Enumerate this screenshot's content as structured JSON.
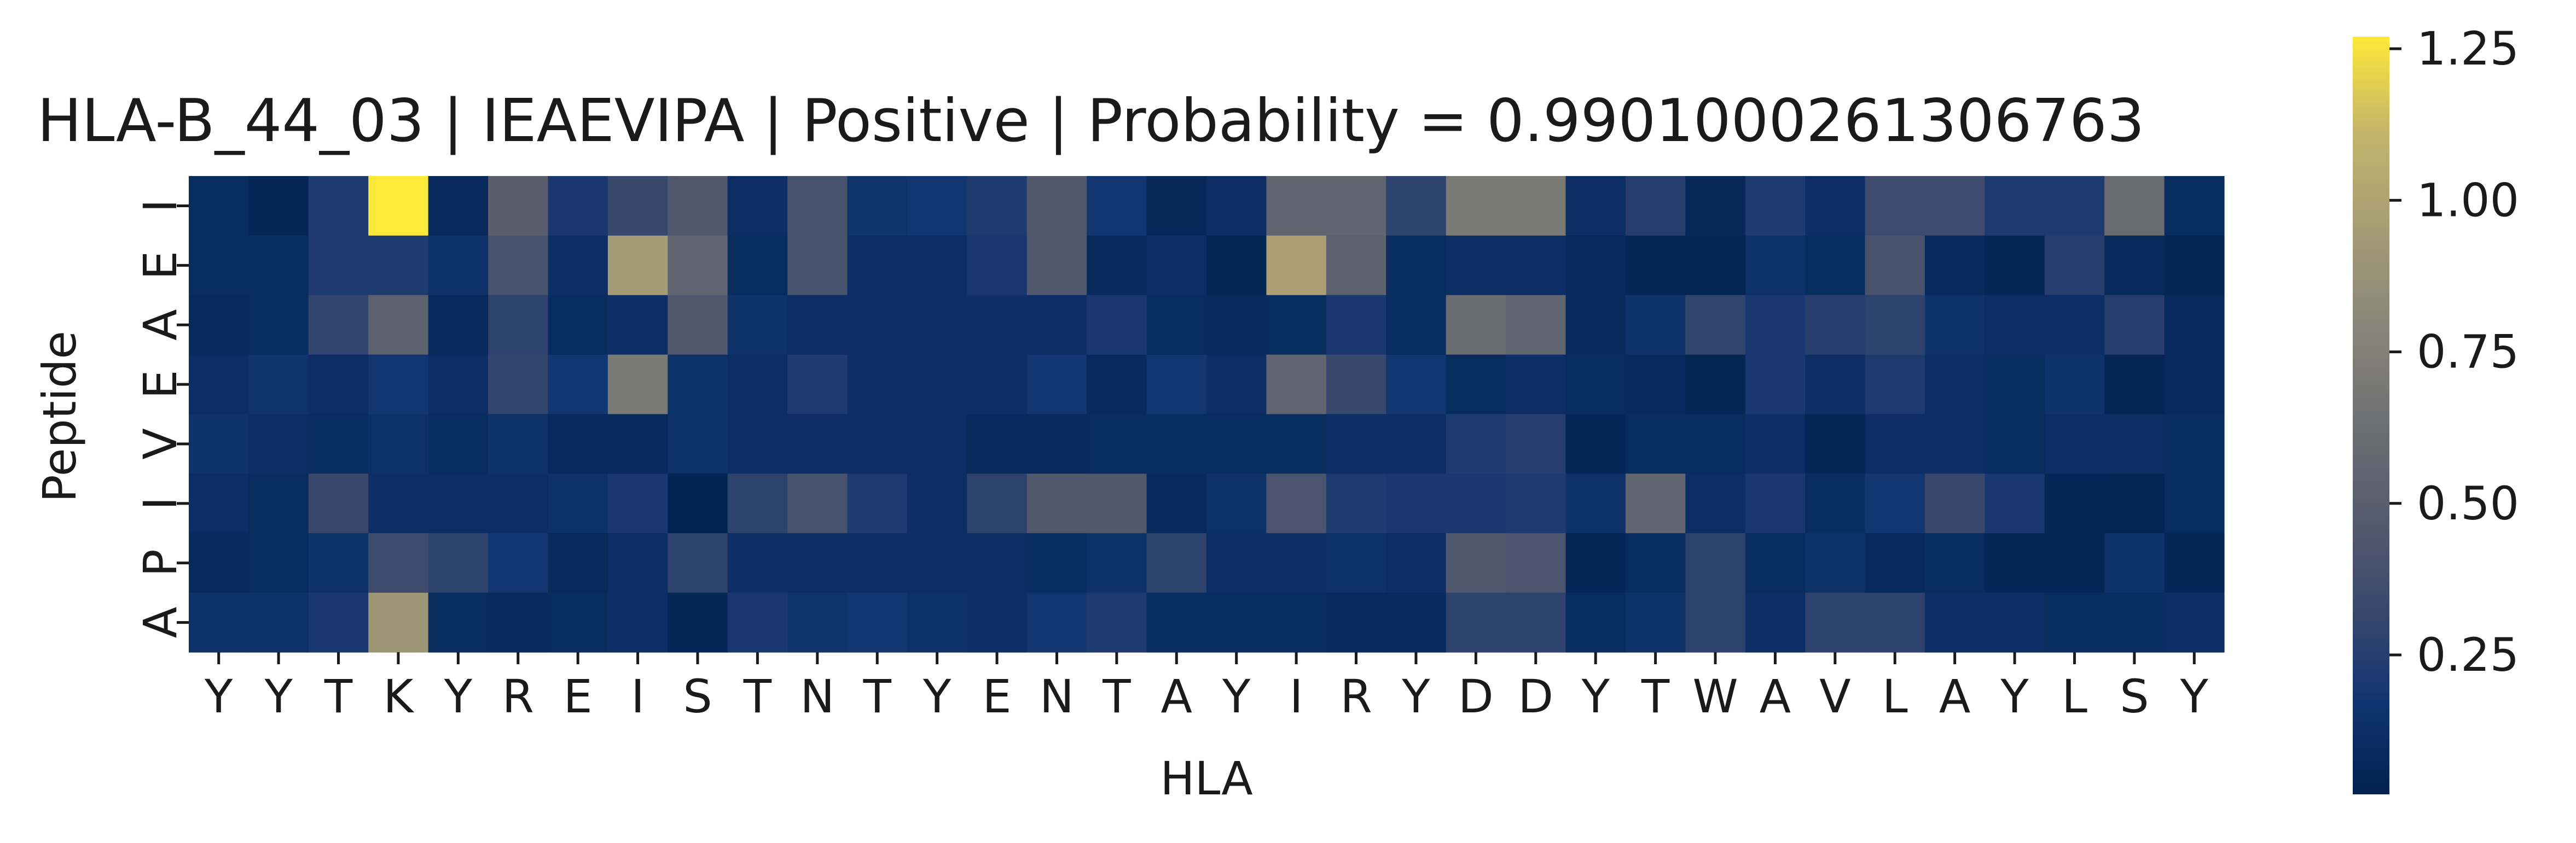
{
  "chart_data": {
    "type": "heatmap",
    "title": "HLA-B_44_03 | IEAEVIPA | Positive | Probability = 0.9901000261306763",
    "xlabel": "HLA",
    "ylabel": "Peptide",
    "x_categories": [
      "Y",
      "Y",
      "T",
      "K",
      "Y",
      "R",
      "E",
      "I",
      "S",
      "T",
      "N",
      "T",
      "Y",
      "E",
      "N",
      "T",
      "A",
      "Y",
      "I",
      "R",
      "Y",
      "D",
      "D",
      "Y",
      "T",
      "W",
      "A",
      "V",
      "L",
      "A",
      "Y",
      "L",
      "S",
      "Y"
    ],
    "y_categories": [
      "I",
      "E",
      "A",
      "E",
      "V",
      "I",
      "P",
      "A"
    ],
    "colormap": "cividis",
    "colorbar": {
      "vmin": 0.02,
      "vmax": 1.27,
      "ticks": [
        0.25,
        0.5,
        0.75,
        1.0,
        1.25
      ],
      "tick_labels": [
        "0.25",
        "0.50",
        "0.75",
        "1.00",
        "1.25"
      ]
    },
    "values": [
      [
        0.1,
        0.06,
        0.22,
        1.27,
        0.08,
        0.5,
        0.2,
        0.32,
        0.45,
        0.12,
        0.4,
        0.16,
        0.18,
        0.22,
        0.45,
        0.18,
        0.07,
        0.12,
        0.55,
        0.55,
        0.28,
        0.7,
        0.7,
        0.12,
        0.25,
        0.07,
        0.22,
        0.12,
        0.35,
        0.35,
        0.22,
        0.22,
        0.6,
        0.1
      ],
      [
        0.1,
        0.1,
        0.22,
        0.22,
        0.14,
        0.4,
        0.12,
        0.95,
        0.55,
        0.1,
        0.4,
        0.12,
        0.12,
        0.2,
        0.45,
        0.08,
        0.12,
        0.05,
        0.98,
        0.52,
        0.1,
        0.12,
        0.12,
        0.08,
        0.06,
        0.05,
        0.14,
        0.1,
        0.4,
        0.08,
        0.05,
        0.25,
        0.08,
        0.05
      ],
      [
        0.08,
        0.1,
        0.3,
        0.52,
        0.08,
        0.28,
        0.1,
        0.12,
        0.45,
        0.15,
        0.12,
        0.12,
        0.12,
        0.12,
        0.12,
        0.2,
        0.1,
        0.08,
        0.1,
        0.2,
        0.1,
        0.6,
        0.55,
        0.08,
        0.15,
        0.3,
        0.2,
        0.25,
        0.28,
        0.15,
        0.12,
        0.12,
        0.25,
        0.08
      ],
      [
        0.12,
        0.16,
        0.12,
        0.18,
        0.12,
        0.3,
        0.18,
        0.7,
        0.14,
        0.12,
        0.22,
        0.12,
        0.12,
        0.12,
        0.18,
        0.08,
        0.18,
        0.12,
        0.55,
        0.32,
        0.18,
        0.1,
        0.12,
        0.1,
        0.08,
        0.05,
        0.2,
        0.12,
        0.22,
        0.12,
        0.1,
        0.15,
        0.05,
        0.08
      ],
      [
        0.15,
        0.12,
        0.1,
        0.14,
        0.1,
        0.14,
        0.08,
        0.08,
        0.14,
        0.12,
        0.12,
        0.12,
        0.12,
        0.08,
        0.08,
        0.1,
        0.1,
        0.1,
        0.1,
        0.12,
        0.12,
        0.22,
        0.25,
        0.06,
        0.1,
        0.1,
        0.12,
        0.06,
        0.12,
        0.12,
        0.1,
        0.12,
        0.12,
        0.1
      ],
      [
        0.12,
        0.1,
        0.32,
        0.12,
        0.12,
        0.12,
        0.14,
        0.2,
        0.04,
        0.28,
        0.4,
        0.22,
        0.12,
        0.28,
        0.45,
        0.45,
        0.08,
        0.14,
        0.42,
        0.22,
        0.2,
        0.2,
        0.22,
        0.14,
        0.55,
        0.12,
        0.2,
        0.1,
        0.18,
        0.32,
        0.2,
        0.06,
        0.05,
        0.1
      ],
      [
        0.08,
        0.1,
        0.14,
        0.35,
        0.28,
        0.18,
        0.08,
        0.12,
        0.28,
        0.12,
        0.12,
        0.12,
        0.12,
        0.12,
        0.1,
        0.14,
        0.28,
        0.12,
        0.12,
        0.14,
        0.12,
        0.45,
        0.42,
        0.06,
        0.1,
        0.28,
        0.1,
        0.14,
        0.08,
        0.1,
        0.06,
        0.06,
        0.14,
        0.06
      ],
      [
        0.14,
        0.14,
        0.2,
        0.9,
        0.1,
        0.08,
        0.1,
        0.12,
        0.06,
        0.2,
        0.16,
        0.18,
        0.14,
        0.12,
        0.18,
        0.22,
        0.1,
        0.1,
        0.1,
        0.08,
        0.08,
        0.28,
        0.28,
        0.1,
        0.14,
        0.28,
        0.12,
        0.28,
        0.28,
        0.12,
        0.12,
        0.1,
        0.1,
        0.12
      ]
    ]
  }
}
